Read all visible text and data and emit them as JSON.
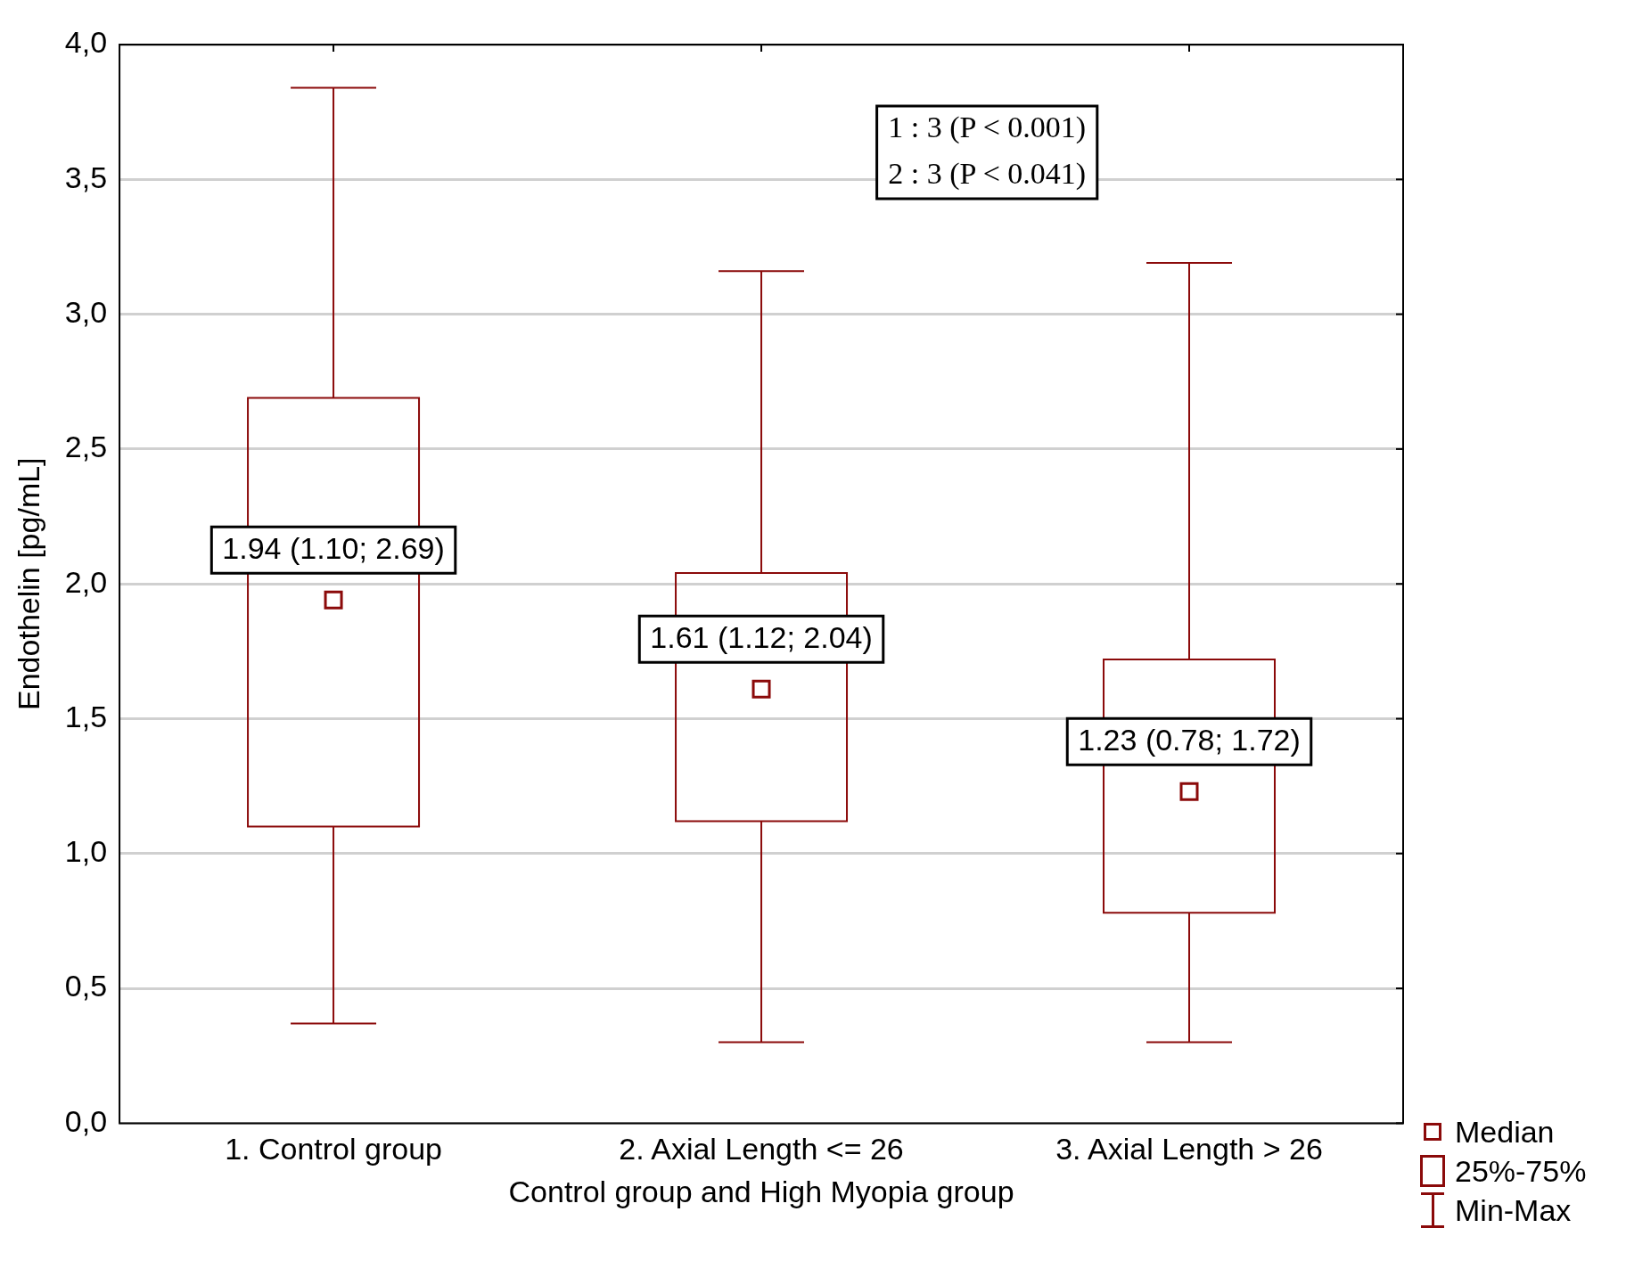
{
  "chart_data": {
    "type": "box",
    "xlabel": "Control group and High Myopia group",
    "ylabel": "Endothelin [pg/mL]",
    "categories": [
      "1. Control group",
      "2. Axial Length <= 26",
      "3. Axial Length > 26"
    ],
    "boxes": [
      {
        "low": 0.37,
        "q1": 1.1,
        "median": 1.94,
        "q3": 2.69,
        "high": 3.84
      },
      {
        "low": 0.3,
        "q1": 1.12,
        "median": 1.61,
        "q3": 2.04,
        "high": 3.16
      },
      {
        "low": 0.3,
        "q1": 0.78,
        "median": 1.23,
        "q3": 1.72,
        "high": 3.19
      }
    ],
    "color": "#8b0a0a",
    "ylim": [
      0,
      4
    ],
    "yticks": [
      {
        "value": 0,
        "label": "0,0"
      },
      {
        "value": 0.5,
        "label": "0,5"
      },
      {
        "value": 1,
        "label": "1,0"
      },
      {
        "value": 1.5,
        "label": "1,5"
      },
      {
        "value": 2,
        "label": "2,0"
      },
      {
        "value": 2.5,
        "label": "2,5"
      },
      {
        "value": 3,
        "label": "3,0"
      },
      {
        "value": 3.5,
        "label": "3,5"
      },
      {
        "value": 4,
        "label": "4,0"
      }
    ],
    "grid": "y",
    "annotations": [
      "1.94 (1.10; 2.69)",
      "1.61 (1.12; 2.04)",
      "1.23 (0.78; 1.72)",
      "1 : 3 (P < 0.001)",
      "2 : 3 (P < 0.041)",
      "Median",
      "25%-75%",
      "Min-Max"
    ]
  }
}
